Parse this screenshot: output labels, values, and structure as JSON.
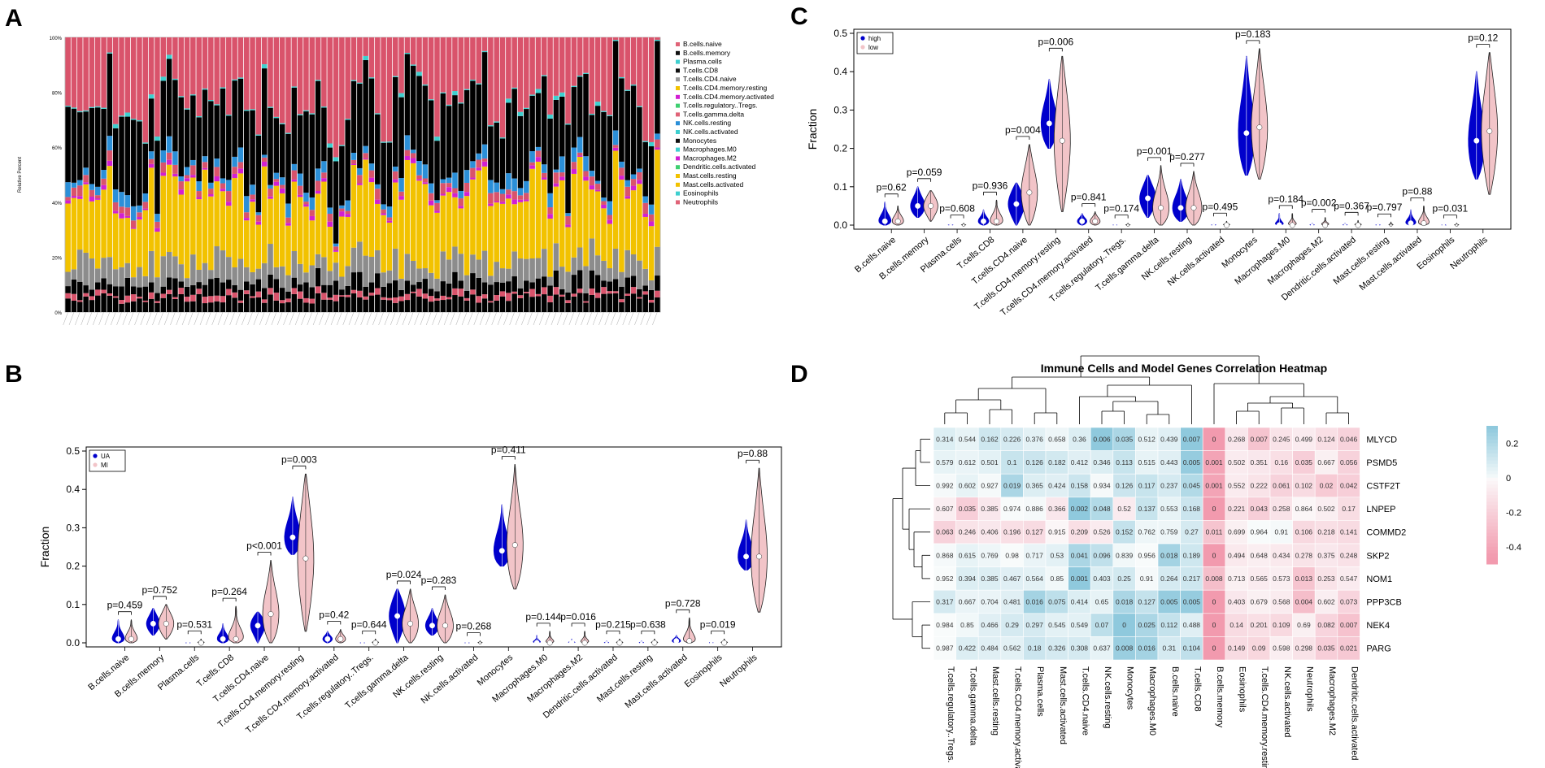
{
  "panels": {
    "A": "A",
    "B": "B",
    "C": "C",
    "D": "D"
  },
  "colors": {
    "naive_pink": "#d9536b",
    "black": "#000000",
    "yellow": "#f2c200",
    "gray": "#8c8c8c",
    "blue": "#2b8fd8",
    "violin_blue": "#0000cc",
    "violin_pink": "#f2c4c8",
    "heat_pos": "#8fc9dd",
    "heat_neg": "#f29aae"
  },
  "chart_data": [
    {
      "id": "A",
      "type": "bar",
      "stacked": true,
      "ylabel": "Relative Percent",
      "yticks": [
        "0%",
        "20%",
        "40%",
        "60%",
        "80%",
        "100%"
      ],
      "n_samples": 100,
      "legend": [
        {
          "name": "B.cells.naive",
          "color": "#e06377"
        },
        {
          "name": "B.cells.memory",
          "color": "#111111"
        },
        {
          "name": "Plasma.cells",
          "color": "#3ecfcf"
        },
        {
          "name": "T.cells.CD8",
          "color": "#111111"
        },
        {
          "name": "T.cells.CD4.naive",
          "color": "#9a9a9a"
        },
        {
          "name": "T.cells.CD4.memory.resting",
          "color": "#f2c200"
        },
        {
          "name": "T.cells.CD4.memory.activated",
          "color": "#d21fd2"
        },
        {
          "name": "T.cells.regulatory..Tregs.",
          "color": "#3ecf70"
        },
        {
          "name": "T.cells.gamma.delta",
          "color": "#e06377"
        },
        {
          "name": "NK.cells.resting",
          "color": "#2b8fd8"
        },
        {
          "name": "NK.cells.activated",
          "color": "#3ecfcf"
        },
        {
          "name": "Monocytes",
          "color": "#111111"
        },
        {
          "name": "Macrophages.M0",
          "color": "#3ecfcf"
        },
        {
          "name": "Macrophages.M2",
          "color": "#d21fd2"
        },
        {
          "name": "Dendritic.cells.activated",
          "color": "#3ecf70"
        },
        {
          "name": "Mast.cells.resting",
          "color": "#f2c200"
        },
        {
          "name": "Mast.cells.activated",
          "color": "#f2c200"
        },
        {
          "name": "Eosinophils",
          "color": "#3ecfcf"
        },
        {
          "name": "Neutrophils",
          "color": "#e06377"
        }
      ]
    },
    {
      "id": "B",
      "type": "violin",
      "ylabel": "Fraction",
      "ylim": [
        0,
        0.5
      ],
      "yticks": [
        "0.0",
        "0.1",
        "0.2",
        "0.3",
        "0.4",
        "0.5"
      ],
      "legend": [
        "UA",
        "MI"
      ],
      "categories": [
        "B.cells.naive",
        "B.cells.memory",
        "Plasma.cells",
        "T.cells.CD8",
        "T.cells.CD4.naive",
        "T.cells.CD4.memory.resting",
        "T.cells.CD4.memory.activated",
        "T.cells.regulatory..Tregs.",
        "T.cells.gamma.delta",
        "NK.cells.resting",
        "NK.cells.activated",
        "Monocytes",
        "Macrophages.M0",
        "Macrophages.M2",
        "Dendritic.cells.activated",
        "Mast.cells.resting",
        "Mast.cells.activated",
        "Eosinophils",
        "Neutrophils"
      ],
      "pvalues": [
        "p=0.459",
        "p=0.752",
        "p=0.531",
        "p=0.264",
        "p<0.001",
        "p=0.003",
        "p=0.42",
        "p=0.644",
        "p=0.024",
        "p=0.283",
        "p=0.268",
        "p=0.411",
        "p=0.144",
        "p=0.016",
        "p=0.215",
        "p=0.638",
        "p=0.728",
        "p=0.019",
        "p=0.88"
      ],
      "series": [
        {
          "name": "UA",
          "medians": [
            0.01,
            0.05,
            0.0,
            0.01,
            0.045,
            0.275,
            0.01,
            0.0,
            0.07,
            0.045,
            0.0,
            0.24,
            0.0,
            0.0,
            0.0,
            0.0,
            0.005,
            0.0,
            0.225
          ],
          "max": [
            0.06,
            0.09,
            0.0,
            0.05,
            0.08,
            0.38,
            0.03,
            0.0,
            0.14,
            0.09,
            0.0,
            0.36,
            0.02,
            0.01,
            0.005,
            0.005,
            0.02,
            0.002,
            0.32
          ],
          "min": [
            0.0,
            0.02,
            0.0,
            0.0,
            0.0,
            0.23,
            0.0,
            0.0,
            0.0,
            0.02,
            0.0,
            0.2,
            0.0,
            0.0,
            0.0,
            0.0,
            0.0,
            0.0,
            0.19
          ]
        },
        {
          "name": "MI",
          "medians": [
            0.01,
            0.05,
            0.0,
            0.01,
            0.075,
            0.22,
            0.01,
            0.0,
            0.05,
            0.045,
            0.0,
            0.255,
            0.0,
            0.0,
            0.0,
            0.0,
            0.005,
            0.0,
            0.225
          ],
          "max": [
            0.06,
            0.1,
            0.01,
            0.095,
            0.215,
            0.44,
            0.035,
            0.01,
            0.14,
            0.125,
            0.005,
            0.465,
            0.03,
            0.03,
            0.01,
            0.01,
            0.065,
            0.01,
            0.455
          ],
          "min": [
            0.0,
            0.01,
            0.0,
            0.0,
            0.0,
            0.03,
            0.0,
            0.0,
            0.0,
            0.0,
            0.0,
            0.14,
            0.0,
            0.0,
            0.0,
            0.0,
            0.0,
            0.0,
            0.08
          ]
        }
      ]
    },
    {
      "id": "C",
      "type": "violin",
      "ylabel": "Fraction",
      "ylim": [
        0,
        0.5
      ],
      "yticks": [
        "0.0",
        "0.1",
        "0.2",
        "0.3",
        "0.4",
        "0.5"
      ],
      "legend": [
        "high",
        "low"
      ],
      "categories": [
        "B.cells.naive",
        "B.cells.memory",
        "Plasma.cells",
        "T.cells.CD8",
        "T.cells.CD4.naive",
        "T.cells.CD4.memory.resting",
        "T.cells.CD4.memory.activated",
        "T.cells.regulatory..Tregs.",
        "T.cells.gamma.delta",
        "NK.cells.resting",
        "NK.cells.activated",
        "Monocytes",
        "Macrophages.M0",
        "Macrophages.M2",
        "Dendritic.cells.activated",
        "Mast.cells.resting",
        "Mast.cells.activated",
        "Eosinophils",
        "Neutrophils"
      ],
      "pvalues": [
        "p=0.62",
        "p=0.059",
        "p=0.608",
        "p=0.936",
        "p=0.004",
        "p=0.006",
        "p=0.841",
        "p=0.174",
        "p=0.001",
        "p=0.277",
        "p=0.495",
        "p=0.183",
        "p=0.184",
        "p=0.002",
        "p=0.367",
        "p=0.797",
        "p=0.88",
        "p=0.031",
        "p=0.12"
      ],
      "series": [
        {
          "name": "high",
          "medians": [
            0.01,
            0.05,
            0.0,
            0.01,
            0.055,
            0.265,
            0.01,
            0.0,
            0.07,
            0.045,
            0.0,
            0.24,
            0.0,
            0.0,
            0.0,
            0.0,
            0.005,
            0.0,
            0.22
          ],
          "max": [
            0.06,
            0.1,
            0.003,
            0.04,
            0.11,
            0.38,
            0.03,
            0.002,
            0.13,
            0.12,
            0.003,
            0.44,
            0.03,
            0.005,
            0.005,
            0.003,
            0.04,
            0.002,
            0.4
          ],
          "min": [
            0.0,
            0.02,
            0.0,
            0.0,
            0.0,
            0.2,
            0.0,
            0.0,
            0.02,
            0.01,
            0.0,
            0.13,
            0.0,
            0.0,
            0.0,
            0.0,
            0.0,
            0.0,
            0.12
          ]
        },
        {
          "name": "low",
          "medians": [
            0.01,
            0.05,
            0.0,
            0.01,
            0.085,
            0.22,
            0.01,
            0.0,
            0.045,
            0.045,
            0.0,
            0.255,
            0.0,
            0.0,
            0.0,
            0.0,
            0.005,
            0.0,
            0.245
          ],
          "max": [
            0.05,
            0.09,
            0.005,
            0.065,
            0.21,
            0.44,
            0.035,
            0.005,
            0.155,
            0.14,
            0.01,
            0.46,
            0.03,
            0.02,
            0.012,
            0.008,
            0.05,
            0.005,
            0.45
          ],
          "min": [
            0.0,
            0.01,
            0.0,
            0.0,
            0.0,
            0.035,
            0.0,
            0.0,
            0.0,
            0.0,
            0.0,
            0.12,
            0.0,
            0.0,
            0.0,
            0.0,
            0.0,
            0.0,
            0.08
          ]
        }
      ]
    },
    {
      "id": "D",
      "type": "heatmap",
      "title": "Immune Cells and Model Genes Correlation Heatmap",
      "columns": [
        "T.cells.regulatory..Tregs.",
        "T.cells.gamma.delta",
        "Mast.cells.resting",
        "T.cells.CD4.memory.activated",
        "Plasma.cells",
        "Mast.cells.activated",
        "T.cells.CD4.naive",
        "NK.cells.resting",
        "Monocytes",
        "Macrophages.M0",
        "B.cells.naive",
        "T.cells.CD8",
        "B.cells.memory",
        "Eosinophils",
        "T.cells.CD4.memory.resting",
        "NK.cells.activated",
        "Neutrophils",
        "Macrophages.M2",
        "Dendritic.cells.activated"
      ],
      "rows": [
        "MLYCD",
        "PSMD5",
        "CSTF2T",
        "LNPEP",
        "COMMD2",
        "SKP2",
        "NOM1",
        "PPP3CB",
        "NEK4",
        "PARG"
      ],
      "pvalues": [
        [
          "0.314",
          "0.544",
          "0.162",
          "0.226",
          "0.376",
          "0.658",
          "0.36",
          "0.006",
          "0.035",
          "0.512",
          "0.439",
          "0.007",
          "0",
          "0.268",
          "0.007",
          "0.245",
          "0.499",
          "0.124",
          "0.046"
        ],
        [
          "0.579",
          "0.612",
          "0.501",
          "0.1",
          "0.126",
          "0.182",
          "0.412",
          "0.346",
          "0.113",
          "0.515",
          "0.443",
          "0.005",
          "0.001",
          "0.502",
          "0.351",
          "0.16",
          "0.035",
          "0.667",
          "0.056"
        ],
        [
          "0.992",
          "0.602",
          "0.927",
          "0.019",
          "0.365",
          "0.424",
          "0.158",
          "0.934",
          "0.126",
          "0.117",
          "0.237",
          "0.045",
          "0.001",
          "0.552",
          "0.222",
          "0.061",
          "0.102",
          "0.02",
          "0.042"
        ],
        [
          "0.607",
          "0.035",
          "0.385",
          "0.974",
          "0.886",
          "0.366",
          "0.002",
          "0.048",
          "0.52",
          "0.137",
          "0.553",
          "0.168",
          "0",
          "0.221",
          "0.043",
          "0.258",
          "0.864",
          "0.502",
          "0.17"
        ],
        [
          "0.063",
          "0.246",
          "0.406",
          "0.196",
          "0.127",
          "0.915",
          "0.209",
          "0.526",
          "0.152",
          "0.762",
          "0.759",
          "0.27",
          "0.011",
          "0.699",
          "0.964",
          "0.91",
          "0.106",
          "0.218",
          "0.141"
        ],
        [
          "0.868",
          "0.615",
          "0.769",
          "0.98",
          "0.717",
          "0.53",
          "0.041",
          "0.096",
          "0.839",
          "0.956",
          "0.018",
          "0.189",
          "0",
          "0.494",
          "0.648",
          "0.434",
          "0.278",
          "0.375",
          "0.248"
        ],
        [
          "0.952",
          "0.394",
          "0.385",
          "0.467",
          "0.564",
          "0.85",
          "0.001",
          "0.403",
          "0.25",
          "0.91",
          "0.264",
          "0.217",
          "0.008",
          "0.713",
          "0.565",
          "0.573",
          "0.013",
          "0.253",
          "0.547"
        ],
        [
          "0.317",
          "0.667",
          "0.704",
          "0.481",
          "0.016",
          "0.075",
          "0.414",
          "0.65",
          "0.018",
          "0.127",
          "0.005",
          "0.005",
          "0",
          "0.403",
          "0.679",
          "0.568",
          "0.004",
          "0.602",
          "0.073"
        ],
        [
          "0.984",
          "0.85",
          "0.466",
          "0.29",
          "0.297",
          "0.545",
          "0.549",
          "0.07",
          "0",
          "0.025",
          "0.112",
          "0.488",
          "0",
          "0.14",
          "0.201",
          "0.109",
          "0.69",
          "0.082",
          "0.007"
        ],
        [
          "0.987",
          "0.422",
          "0.484",
          "0.562",
          "0.18",
          "0.326",
          "0.308",
          "0.637",
          "0.008",
          "0.016",
          "0.31",
          "0.104",
          "0",
          "0.149",
          "0.09",
          "0.598",
          "0.298",
          "0.035",
          "0.021"
        ]
      ],
      "correlations": [
        [
          0.08,
          0.05,
          0.12,
          0.1,
          0.06,
          0.03,
          0.08,
          0.3,
          0.22,
          0.05,
          0.07,
          0.3,
          -0.45,
          -0.08,
          -0.25,
          -0.1,
          -0.06,
          -0.12,
          -0.18
        ],
        [
          0.05,
          0.04,
          0.06,
          0.14,
          0.13,
          0.11,
          0.07,
          0.08,
          0.14,
          0.05,
          0.07,
          0.28,
          -0.4,
          -0.06,
          -0.08,
          -0.12,
          -0.2,
          -0.04,
          -0.18
        ],
        [
          0.01,
          0.05,
          0.01,
          0.22,
          0.08,
          0.07,
          0.13,
          0.01,
          0.13,
          0.14,
          0.1,
          0.2,
          -0.4,
          -0.06,
          -0.1,
          -0.18,
          -0.14,
          -0.22,
          -0.2
        ],
        [
          -0.05,
          -0.2,
          -0.08,
          0.0,
          0.01,
          -0.08,
          0.32,
          0.2,
          -0.06,
          0.14,
          0.05,
          0.13,
          -0.45,
          -0.12,
          -0.2,
          -0.1,
          -0.01,
          -0.05,
          -0.13
        ],
        [
          -0.18,
          -0.1,
          -0.08,
          -0.12,
          -0.14,
          -0.01,
          -0.12,
          -0.06,
          0.15,
          0.03,
          0.03,
          0.1,
          -0.25,
          -0.04,
          0.0,
          0.01,
          -0.15,
          -0.12,
          -0.14
        ],
        [
          0.01,
          0.05,
          0.03,
          0.0,
          0.04,
          0.06,
          0.22,
          0.16,
          0.02,
          0.0,
          0.24,
          0.12,
          -0.45,
          -0.07,
          -0.05,
          -0.07,
          -0.1,
          -0.08,
          -0.11
        ],
        [
          0.0,
          0.08,
          0.08,
          0.07,
          0.06,
          0.02,
          0.35,
          0.08,
          0.11,
          0.01,
          0.1,
          0.12,
          -0.28,
          -0.04,
          -0.06,
          -0.05,
          -0.25,
          -0.1,
          -0.06
        ],
        [
          0.1,
          0.04,
          0.04,
          0.07,
          0.24,
          0.17,
          0.08,
          0.05,
          0.22,
          0.15,
          0.28,
          0.28,
          -0.45,
          -0.08,
          -0.04,
          -0.06,
          -0.28,
          -0.05,
          -0.17
        ],
        [
          0.0,
          0.02,
          0.07,
          0.1,
          0.1,
          0.06,
          0.06,
          0.17,
          0.42,
          0.22,
          0.15,
          0.07,
          -0.45,
          -0.14,
          -0.12,
          -0.15,
          -0.04,
          -0.17,
          -0.26
        ],
        [
          0.0,
          0.08,
          0.07,
          0.06,
          0.13,
          0.1,
          0.1,
          0.05,
          0.27,
          0.24,
          0.1,
          0.16,
          -0.45,
          -0.14,
          -0.16,
          -0.05,
          -0.1,
          -0.2,
          -0.23
        ]
      ],
      "colorbar_ticks": [
        "0.2",
        "0",
        "-0.2",
        "-0.4"
      ],
      "colorbar_range": [
        -0.5,
        0.3
      ]
    }
  ]
}
